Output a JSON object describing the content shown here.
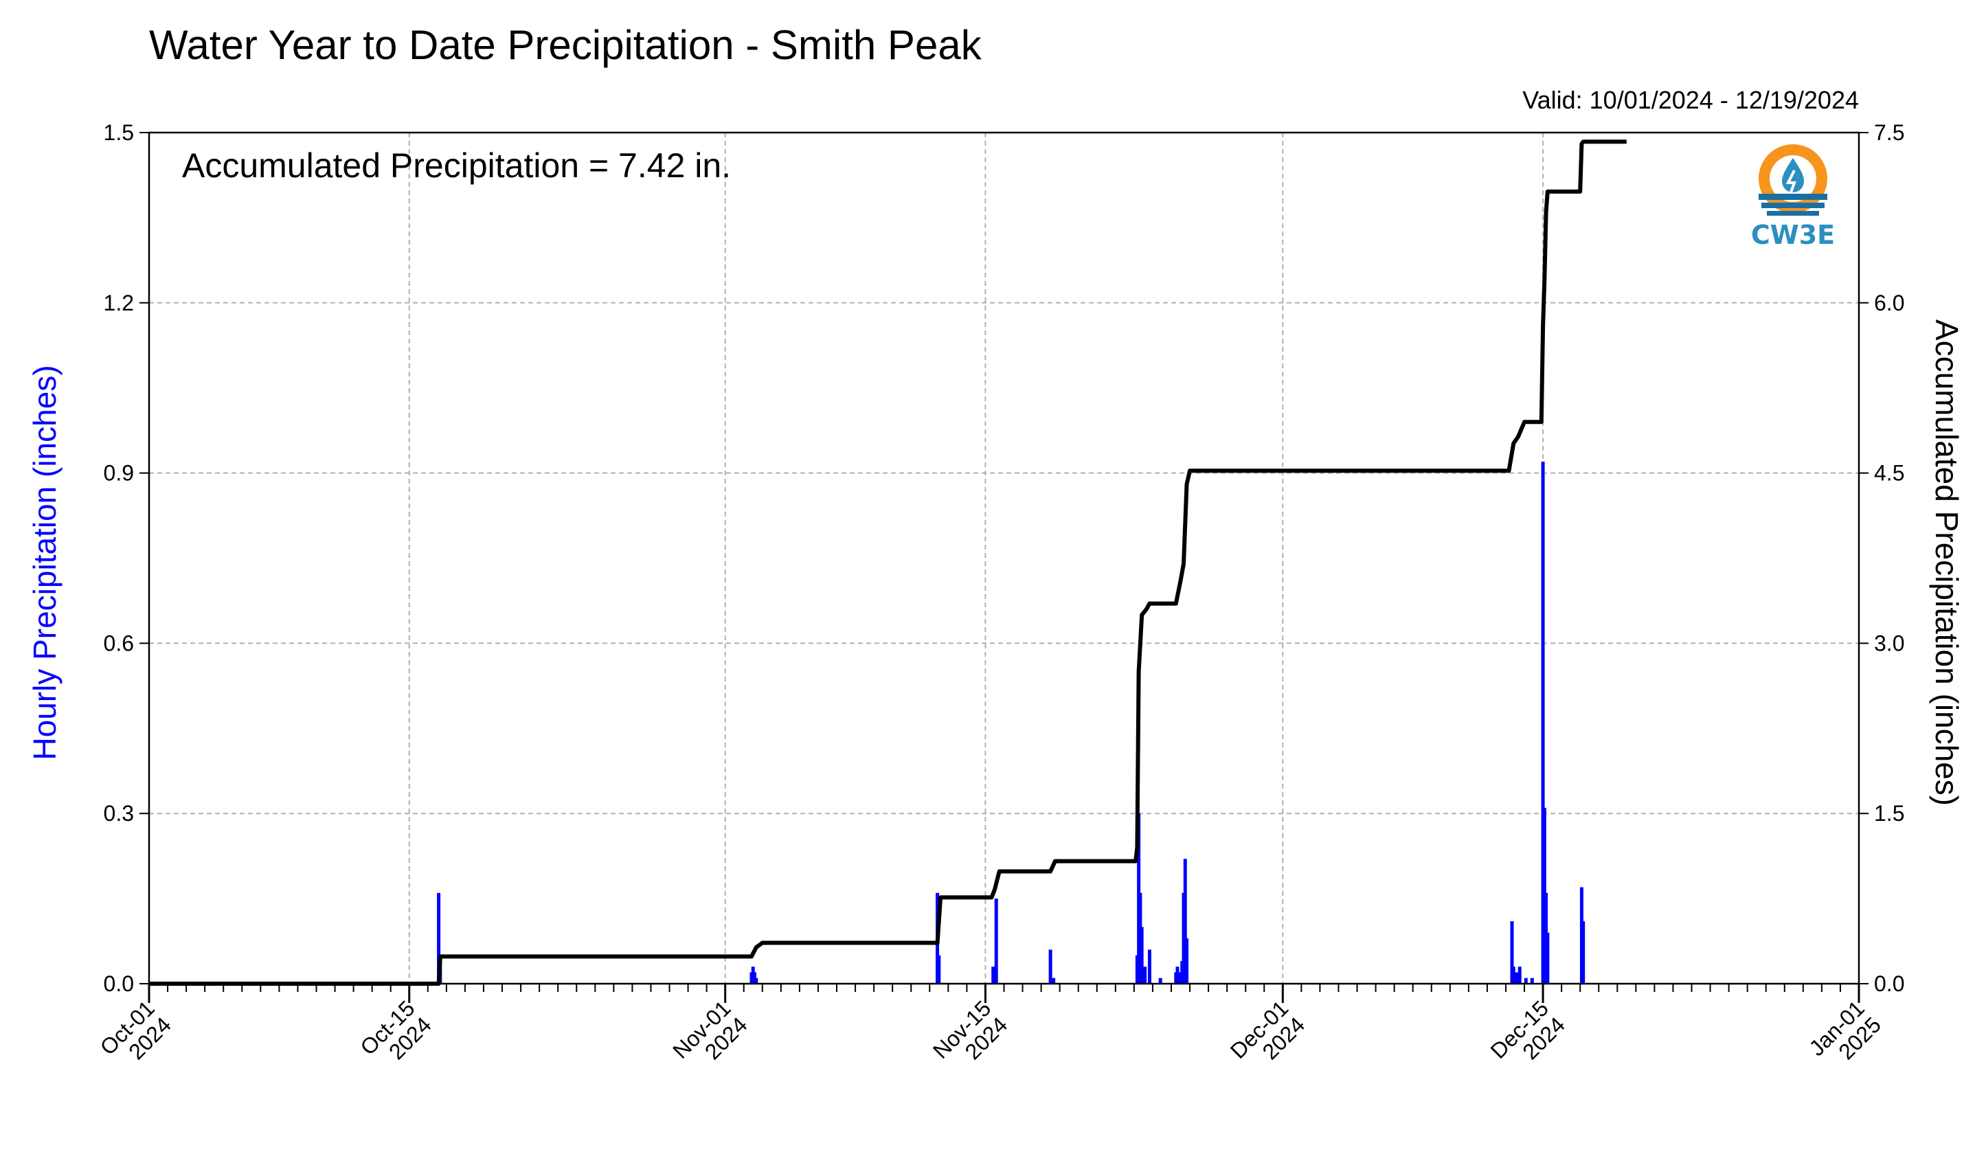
{
  "chart_data": {
    "type": "bar",
    "title": "Water Year to Date Precipitation - Smith Peak",
    "valid_range": "Valid: 10/01/2024 - 12/19/2024",
    "annotation": "Accumulated Precipitation = 7.42 in.",
    "logo_text": "CW3E",
    "xlabel": "",
    "y_left": {
      "label": "Hourly Precipitation (inches)",
      "ylim": [
        0,
        1.5
      ],
      "ticks": [
        "0.0",
        "0.3",
        "0.6",
        "0.9",
        "1.2",
        "1.5"
      ]
    },
    "y_right": {
      "label": "Accumulated Precipitation (inches)",
      "ylim": [
        0,
        7.5
      ],
      "ticks": [
        "0.0",
        "1.5",
        "3.0",
        "4.5",
        "6.0",
        "7.5"
      ]
    },
    "x_axis": {
      "start": "2024-10-01",
      "end": "2025-01-01",
      "major_ticks": [
        {
          "date": "2024-10-01",
          "line1": "Oct-01",
          "line2": "2024"
        },
        {
          "date": "2024-10-15",
          "line1": "Oct-15",
          "line2": "2024"
        },
        {
          "date": "2024-11-01",
          "line1": "Nov-01",
          "line2": "2024"
        },
        {
          "date": "2024-11-15",
          "line1": "Nov-15",
          "line2": "2024"
        },
        {
          "date": "2024-12-01",
          "line1": "Dec-01",
          "line2": "2024"
        },
        {
          "date": "2024-12-15",
          "line1": "Dec-15",
          "line2": "2024"
        },
        {
          "date": "2025-01-01",
          "line1": "Jan-01",
          "line2": "2025"
        }
      ]
    },
    "grid": true,
    "series": [
      {
        "name": "Hourly Precipitation (inches)",
        "type": "bar",
        "color": "#0000ff",
        "points": [
          [
            "2024-10-16 14:00",
            0.16
          ],
          [
            "2024-10-16 16:00",
            0.05
          ],
          [
            "2024-11-02 10:00",
            0.02
          ],
          [
            "2024-11-02 12:00",
            0.03
          ],
          [
            "2024-11-02 14:00",
            0.02
          ],
          [
            "2024-11-02 16:00",
            0.01
          ],
          [
            "2024-11-12 10:00",
            0.16
          ],
          [
            "2024-11-12 12:00",
            0.05
          ],
          [
            "2024-11-15 10:00",
            0.03
          ],
          [
            "2024-11-15 14:00",
            0.15
          ],
          [
            "2024-11-18 12:00",
            0.06
          ],
          [
            "2024-11-18 16:00",
            0.01
          ],
          [
            "2024-11-23 04:00",
            0.05
          ],
          [
            "2024-11-23 06:00",
            0.3
          ],
          [
            "2024-11-23 08:00",
            0.16
          ],
          [
            "2024-11-23 10:00",
            0.1
          ],
          [
            "2024-11-23 14:00",
            0.03
          ],
          [
            "2024-11-23 20:00",
            0.06
          ],
          [
            "2024-11-24 10:00",
            0.01
          ],
          [
            "2024-11-25 06:00",
            0.02
          ],
          [
            "2024-11-25 08:00",
            0.03
          ],
          [
            "2024-11-25 10:00",
            0.02
          ],
          [
            "2024-11-25 14:00",
            0.04
          ],
          [
            "2024-11-25 16:00",
            0.16
          ],
          [
            "2024-11-25 18:00",
            0.22
          ],
          [
            "2024-11-25 20:00",
            0.08
          ],
          [
            "2024-12-13 08:00",
            0.11
          ],
          [
            "2024-12-13 10:00",
            0.03
          ],
          [
            "2024-12-13 14:00",
            0.02
          ],
          [
            "2024-12-13 18:00",
            0.03
          ],
          [
            "2024-12-14 02:00",
            0.01
          ],
          [
            "2024-12-14 10:00",
            0.01
          ],
          [
            "2024-12-15 00:00",
            0.92
          ],
          [
            "2024-12-15 02:00",
            0.31
          ],
          [
            "2024-12-15 04:00",
            0.16
          ],
          [
            "2024-12-15 06:00",
            0.09
          ],
          [
            "2024-12-17 02:00",
            0.17
          ],
          [
            "2024-12-17 04:00",
            0.11
          ]
        ]
      },
      {
        "name": "Accumulated Precipitation (inches)",
        "type": "line",
        "color": "#000000",
        "points": [
          [
            "2024-10-01 00:00",
            0.0
          ],
          [
            "2024-10-16 14:00",
            0.0
          ],
          [
            "2024-10-16 16:00",
            0.24
          ],
          [
            "2024-11-02 10:00",
            0.24
          ],
          [
            "2024-11-02 16:00",
            0.32
          ],
          [
            "2024-11-03 00:00",
            0.36
          ],
          [
            "2024-11-12 10:00",
            0.36
          ],
          [
            "2024-11-12 14:00",
            0.76
          ],
          [
            "2024-11-15 08:00",
            0.76
          ],
          [
            "2024-11-15 12:00",
            0.83
          ],
          [
            "2024-11-15 18:00",
            0.99
          ],
          [
            "2024-11-18 12:00",
            0.99
          ],
          [
            "2024-11-18 18:00",
            1.08
          ],
          [
            "2024-11-23 02:00",
            1.08
          ],
          [
            "2024-11-23 04:00",
            1.2
          ],
          [
            "2024-11-23 06:00",
            2.75
          ],
          [
            "2024-11-23 10:00",
            3.25
          ],
          [
            "2024-11-23 16:00",
            3.3
          ],
          [
            "2024-11-23 20:00",
            3.35
          ],
          [
            "2024-11-25 06:00",
            3.35
          ],
          [
            "2024-11-25 12:00",
            3.55
          ],
          [
            "2024-11-25 16:00",
            3.7
          ],
          [
            "2024-11-25 20:00",
            4.4
          ],
          [
            "2024-11-26 00:00",
            4.52
          ],
          [
            "2024-12-13 04:00",
            4.52
          ],
          [
            "2024-12-13 10:00",
            4.76
          ],
          [
            "2024-12-13 16:00",
            4.82
          ],
          [
            "2024-12-14 00:00",
            4.95
          ],
          [
            "2024-12-14 22:00",
            4.95
          ],
          [
            "2024-12-15 00:00",
            5.8
          ],
          [
            "2024-12-15 02:00",
            6.2
          ],
          [
            "2024-12-15 04:00",
            6.8
          ],
          [
            "2024-12-15 06:00",
            6.98
          ],
          [
            "2024-12-17 00:00",
            6.98
          ],
          [
            "2024-12-17 02:00",
            7.4
          ],
          [
            "2024-12-17 04:00",
            7.42
          ],
          [
            "2024-12-19 12:00",
            7.42
          ]
        ]
      }
    ]
  }
}
